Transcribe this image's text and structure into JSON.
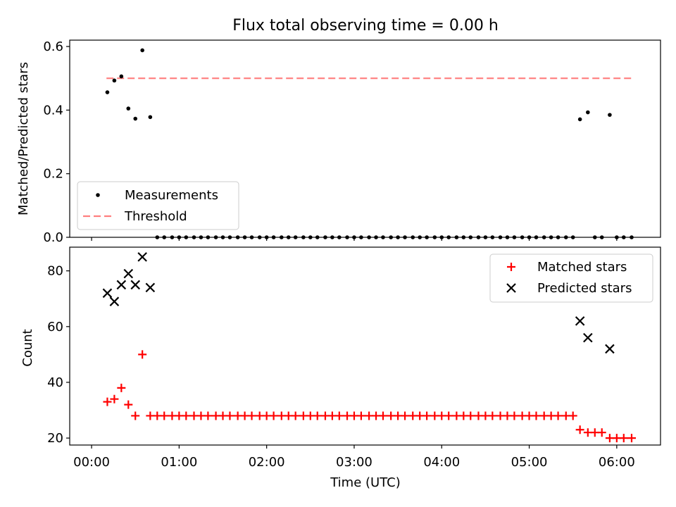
{
  "chart_data": {
    "title": "Flux total observing time = 0.00 h",
    "xlabel": "Time (UTC)",
    "xlim": [
      -0.25,
      6.5
    ],
    "x_ticks": [
      0,
      1,
      2,
      3,
      4,
      5,
      6
    ],
    "x_tick_labels": [
      "00:00",
      "01:00",
      "02:00",
      "03:00",
      "04:00",
      "05:00",
      "06:00"
    ],
    "top": {
      "type": "scatter",
      "ylabel": "Matched/Predicted stars",
      "ylim": [
        0,
        0.62
      ],
      "y_ticks": [
        0,
        0.2,
        0.4,
        0.6
      ],
      "y_tick_labels": [
        "0.0",
        "0.2",
        "0.4",
        "0.6"
      ],
      "legend": {
        "position": "lower-left",
        "entries": [
          "Measurements",
          "Threshold"
        ]
      },
      "threshold": {
        "name": "Threshold",
        "value": 0.5,
        "x_range": [
          0.17,
          6.17
        ],
        "color": "#ff7f7f"
      },
      "measurements": {
        "name": "Measurements",
        "color": "#000000",
        "x": [
          0.18,
          0.26,
          0.34,
          0.42,
          0.5,
          0.58,
          0.67,
          0.75,
          0.83,
          0.92,
          1.0,
          1.08,
          1.17,
          1.25,
          1.33,
          1.42,
          1.5,
          1.58,
          1.67,
          1.75,
          1.83,
          1.92,
          2.0,
          2.08,
          2.17,
          2.25,
          2.33,
          2.42,
          2.5,
          2.58,
          2.67,
          2.75,
          2.83,
          2.92,
          3.0,
          3.08,
          3.17,
          3.25,
          3.33,
          3.42,
          3.5,
          3.58,
          3.67,
          3.75,
          3.83,
          3.92,
          4.0,
          4.08,
          4.17,
          4.25,
          4.33,
          4.42,
          4.5,
          4.58,
          4.67,
          4.75,
          4.83,
          4.92,
          5.0,
          5.08,
          5.17,
          5.25,
          5.33,
          5.42,
          5.5,
          5.58,
          5.67,
          5.75,
          5.83,
          5.92,
          6.0,
          6.08,
          6.17
        ],
        "y": [
          0.456,
          0.493,
          0.506,
          0.405,
          0.373,
          0.588,
          0.378,
          0,
          0,
          0,
          0,
          0,
          0,
          0,
          0,
          0,
          0,
          0,
          0,
          0,
          0,
          0,
          0,
          0,
          0,
          0,
          0,
          0,
          0,
          0,
          0,
          0,
          0,
          0,
          0,
          0,
          0,
          0,
          0,
          0,
          0,
          0,
          0,
          0,
          0,
          0,
          0,
          0,
          0,
          0,
          0,
          0,
          0,
          0,
          0,
          0,
          0,
          0,
          0,
          0,
          0,
          0,
          0,
          0,
          0,
          0.371,
          0.393,
          0,
          0,
          0.385,
          0,
          0,
          0
        ]
      }
    },
    "bottom": {
      "type": "scatter",
      "ylabel": "Count",
      "ylim": [
        17.5,
        88.5
      ],
      "y_ticks": [
        20,
        40,
        60,
        80
      ],
      "y_tick_labels": [
        "20",
        "40",
        "60",
        "80"
      ],
      "legend": {
        "position": "top-right",
        "entries": [
          "Matched stars",
          "Predicted stars"
        ]
      },
      "series": [
        {
          "name": "Matched stars",
          "marker": "+",
          "color": "#ff0000",
          "x": [
            0.18,
            0.26,
            0.34,
            0.42,
            0.5,
            0.58,
            0.67,
            0.75,
            0.83,
            0.92,
            1.0,
            1.08,
            1.17,
            1.25,
            1.33,
            1.42,
            1.5,
            1.58,
            1.67,
            1.75,
            1.83,
            1.92,
            2.0,
            2.08,
            2.17,
            2.25,
            2.33,
            2.42,
            2.5,
            2.58,
            2.67,
            2.75,
            2.83,
            2.92,
            3.0,
            3.08,
            3.17,
            3.25,
            3.33,
            3.42,
            3.5,
            3.58,
            3.67,
            3.75,
            3.83,
            3.92,
            4.0,
            4.08,
            4.17,
            4.25,
            4.33,
            4.42,
            4.5,
            4.58,
            4.67,
            4.75,
            4.83,
            4.92,
            5.0,
            5.08,
            5.17,
            5.25,
            5.33,
            5.42,
            5.5,
            5.58,
            5.67,
            5.75,
            5.83,
            5.92,
            6.0,
            6.08,
            6.17
          ],
          "values": [
            33,
            34,
            38,
            32,
            28,
            50,
            28,
            28,
            28,
            28,
            28,
            28,
            28,
            28,
            28,
            28,
            28,
            28,
            28,
            28,
            28,
            28,
            28,
            28,
            28,
            28,
            28,
            28,
            28,
            28,
            28,
            28,
            28,
            28,
            28,
            28,
            28,
            28,
            28,
            28,
            28,
            28,
            28,
            28,
            28,
            28,
            28,
            28,
            28,
            28,
            28,
            28,
            28,
            28,
            28,
            28,
            28,
            28,
            28,
            28,
            28,
            28,
            28,
            28,
            28,
            23,
            22,
            22,
            22,
            20,
            20,
            20,
            20
          ]
        },
        {
          "name": "Predicted stars",
          "marker": "x",
          "color": "#000000",
          "x": [
            0.18,
            0.26,
            0.34,
            0.42,
            0.5,
            0.58,
            0.67,
            5.58,
            5.67,
            5.92
          ],
          "values": [
            72,
            69,
            75,
            79,
            75,
            85,
            74,
            62,
            56,
            52
          ]
        }
      ]
    }
  }
}
